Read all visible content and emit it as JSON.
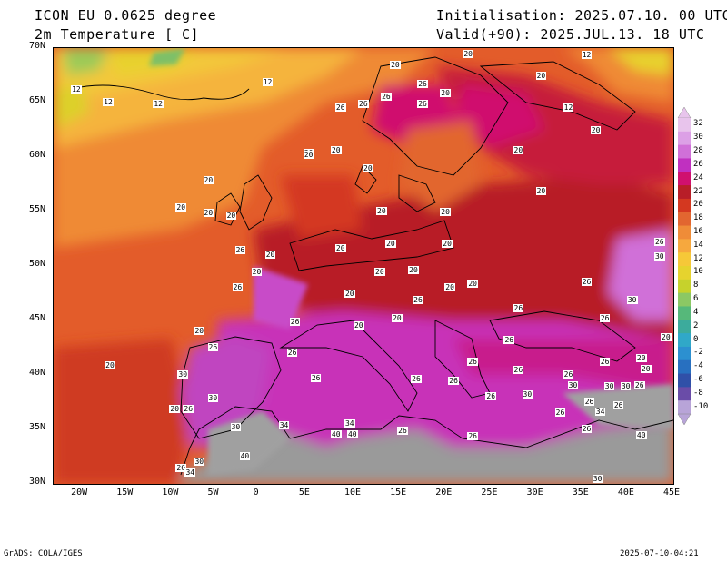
{
  "header": {
    "model_title": "ICON EU 0.0625 degree",
    "variable_title": "2m Temperature [ C]",
    "init_text": "Initialisation: 2025.07.10. 00 UTC",
    "valid_text": "Valid(+90): 2025.JUL.13. 18 UTC"
  },
  "axes": {
    "lat_labels": [
      "70N",
      "65N",
      "60N",
      "55N",
      "50N",
      "45N",
      "40N",
      "35N",
      "30N"
    ],
    "lon_labels": [
      "20W",
      "15W",
      "10W",
      "5W",
      "0",
      "5E",
      "10E",
      "15E",
      "20E",
      "25E",
      "30E",
      "35E",
      "40E",
      "45E"
    ],
    "lat_range": [
      30,
      70
    ],
    "lon_range": [
      -23,
      45
    ]
  },
  "colorbar": {
    "values": [
      "32",
      "30",
      "28",
      "26",
      "24",
      "22",
      "20",
      "18",
      "16",
      "14",
      "12",
      "10",
      "8",
      "6",
      "4",
      "2",
      "0",
      "-2",
      "-4",
      "-6",
      "-8",
      "-10"
    ],
    "colors": [
      "#e8c4ec",
      "#dca0e6",
      "#d070d8",
      "#c030c0",
      "#d0106e",
      "#b81e28",
      "#d43820",
      "#e26630",
      "#ef8c38",
      "#f6a83e",
      "#f6c838",
      "#e6d32e",
      "#c6d22c",
      "#8cc864",
      "#56b87a",
      "#3cab9c",
      "#30a8c8",
      "#2c90d0",
      "#2870c0",
      "#3050a8",
      "#6a4ca8",
      "#b8a4d8"
    ]
  },
  "map_labels": [
    {
      "text": "12",
      "lon": -20.5,
      "lat": 66.2
    },
    {
      "text": "12",
      "lon": -17.0,
      "lat": 65.0
    },
    {
      "text": "12",
      "lon": -11.5,
      "lat": 64.8
    },
    {
      "text": "12",
      "lon": 0.5,
      "lat": 66.8
    },
    {
      "text": "20",
      "lon": 14.5,
      "lat": 68.4
    },
    {
      "text": "20",
      "lon": 22.5,
      "lat": 69.4
    },
    {
      "text": "20",
      "lon": 30.5,
      "lat": 67.4
    },
    {
      "text": "12",
      "lon": 35.5,
      "lat": 69.3
    },
    {
      "text": "26",
      "lon": 17.5,
      "lat": 66.7
    },
    {
      "text": "26",
      "lon": 13.5,
      "lat": 65.5
    },
    {
      "text": "26",
      "lon": 11.0,
      "lat": 64.8
    },
    {
      "text": "26",
      "lon": 8.5,
      "lat": 64.5
    },
    {
      "text": "20",
      "lon": 20.0,
      "lat": 65.8
    },
    {
      "text": "26",
      "lon": 17.5,
      "lat": 64.8
    },
    {
      "text": "12",
      "lon": 33.5,
      "lat": 64.5
    },
    {
      "text": "20",
      "lon": 36.5,
      "lat": 62.4
    },
    {
      "text": "20",
      "lon": 5.0,
      "lat": 60.3
    },
    {
      "text": "20",
      "lon": 8.0,
      "lat": 60.6
    },
    {
      "text": "20",
      "lon": 5.0,
      "lat": 60.2
    },
    {
      "text": "20",
      "lon": 28.0,
      "lat": 60.6
    },
    {
      "text": "20",
      "lon": 11.5,
      "lat": 58.9
    },
    {
      "text": "20",
      "lon": -6.0,
      "lat": 57.8
    },
    {
      "text": "20",
      "lon": 30.5,
      "lat": 56.8
    },
    {
      "text": "20",
      "lon": -9.0,
      "lat": 55.3
    },
    {
      "text": "20",
      "lon": -6.0,
      "lat": 54.8
    },
    {
      "text": "20",
      "lon": -3.5,
      "lat": 54.6
    },
    {
      "text": "20",
      "lon": 13.0,
      "lat": 55.0
    },
    {
      "text": "20",
      "lon": 20.0,
      "lat": 54.9
    },
    {
      "text": "26",
      "lon": -2.5,
      "lat": 51.4
    },
    {
      "text": "20",
      "lon": 0.8,
      "lat": 51.0
    },
    {
      "text": "20",
      "lon": 8.5,
      "lat": 51.6
    },
    {
      "text": "20",
      "lon": 14.0,
      "lat": 52.0
    },
    {
      "text": "20",
      "lon": 20.2,
      "lat": 52.0
    },
    {
      "text": "26",
      "lon": 43.5,
      "lat": 52.2
    },
    {
      "text": "30",
      "lon": 43.5,
      "lat": 50.8
    },
    {
      "text": "20",
      "lon": -0.7,
      "lat": 49.4
    },
    {
      "text": "20",
      "lon": 12.8,
      "lat": 49.4
    },
    {
      "text": "20",
      "lon": 16.5,
      "lat": 49.6
    },
    {
      "text": "26",
      "lon": -2.8,
      "lat": 48.0
    },
    {
      "text": "20",
      "lon": 9.5,
      "lat": 47.4
    },
    {
      "text": "20",
      "lon": 20.5,
      "lat": 48.0
    },
    {
      "text": "20",
      "lon": 23.0,
      "lat": 48.3
    },
    {
      "text": "26",
      "lon": 35.5,
      "lat": 48.5
    },
    {
      "text": "30",
      "lon": 40.5,
      "lat": 46.8
    },
    {
      "text": "26",
      "lon": 17.0,
      "lat": 46.8
    },
    {
      "text": "26",
      "lon": 3.5,
      "lat": 44.8
    },
    {
      "text": "20",
      "lon": 14.7,
      "lat": 45.2
    },
    {
      "text": "20",
      "lon": 10.5,
      "lat": 44.5
    },
    {
      "text": "26",
      "lon": 28.0,
      "lat": 46.1
    },
    {
      "text": "26",
      "lon": 37.5,
      "lat": 45.2
    },
    {
      "text": "20",
      "lon": -7.0,
      "lat": 44.0
    },
    {
      "text": "26",
      "lon": 27.0,
      "lat": 43.2
    },
    {
      "text": "20",
      "lon": 44.5,
      "lat": 43.4
    },
    {
      "text": "26",
      "lon": -5.5,
      "lat": 42.5
    },
    {
      "text": "26",
      "lon": 3.2,
      "lat": 42.0
    },
    {
      "text": "20",
      "lon": 41.5,
      "lat": 41.5
    },
    {
      "text": "20",
      "lon": 42.0,
      "lat": 40.5
    },
    {
      "text": "26",
      "lon": 23.0,
      "lat": 41.2
    },
    {
      "text": "26",
      "lon": 37.5,
      "lat": 41.2
    },
    {
      "text": "20",
      "lon": -16.8,
      "lat": 40.8
    },
    {
      "text": "30",
      "lon": -8.8,
      "lat": 40.0
    },
    {
      "text": "26",
      "lon": 5.8,
      "lat": 39.7
    },
    {
      "text": "26",
      "lon": 16.8,
      "lat": 39.6
    },
    {
      "text": "26",
      "lon": 20.9,
      "lat": 39.4
    },
    {
      "text": "26",
      "lon": 28.0,
      "lat": 40.4
    },
    {
      "text": "26",
      "lon": 33.5,
      "lat": 40.0
    },
    {
      "text": "30",
      "lon": 34.0,
      "lat": 39.0
    },
    {
      "text": "30",
      "lon": 38.0,
      "lat": 38.9
    },
    {
      "text": "30",
      "lon": 39.8,
      "lat": 38.9
    },
    {
      "text": "26",
      "lon": 41.3,
      "lat": 39.0
    },
    {
      "text": "30",
      "lon": -5.5,
      "lat": 37.8
    },
    {
      "text": "26",
      "lon": 25.0,
      "lat": 38.0
    },
    {
      "text": "30",
      "lon": 29.0,
      "lat": 38.2
    },
    {
      "text": "26",
      "lon": 35.8,
      "lat": 37.5
    },
    {
      "text": "26",
      "lon": 39.0,
      "lat": 37.2
    },
    {
      "text": "20",
      "lon": -9.7,
      "lat": 36.8
    },
    {
      "text": "26",
      "lon": -8.2,
      "lat": 36.8
    },
    {
      "text": "26",
      "lon": 32.6,
      "lat": 36.5
    },
    {
      "text": "34",
      "lon": 37.0,
      "lat": 36.6
    },
    {
      "text": "30",
      "lon": -3.0,
      "lat": 35.2
    },
    {
      "text": "34",
      "lon": 2.3,
      "lat": 35.3
    },
    {
      "text": "34",
      "lon": 9.5,
      "lat": 35.5
    },
    {
      "text": "40",
      "lon": 9.8,
      "lat": 34.5
    },
    {
      "text": "26",
      "lon": 15.3,
      "lat": 34.8
    },
    {
      "text": "40",
      "lon": 8.0,
      "lat": 34.5
    },
    {
      "text": "26",
      "lon": 35.5,
      "lat": 35.0
    },
    {
      "text": "40",
      "lon": 41.5,
      "lat": 34.4
    },
    {
      "text": "26",
      "lon": 23.0,
      "lat": 34.3
    },
    {
      "text": "40",
      "lon": -2.0,
      "lat": 32.5
    },
    {
      "text": "30",
      "lon": -7.0,
      "lat": 32.0
    },
    {
      "text": "26",
      "lon": -9.0,
      "lat": 31.4
    },
    {
      "text": "34",
      "lon": -8.0,
      "lat": 31.0
    },
    {
      "text": "30",
      "lon": 36.7,
      "lat": 30.4
    }
  ],
  "footer": {
    "credit": "GrADS: COLA/IGES",
    "timestamp": "2025-07-10-04:21"
  }
}
